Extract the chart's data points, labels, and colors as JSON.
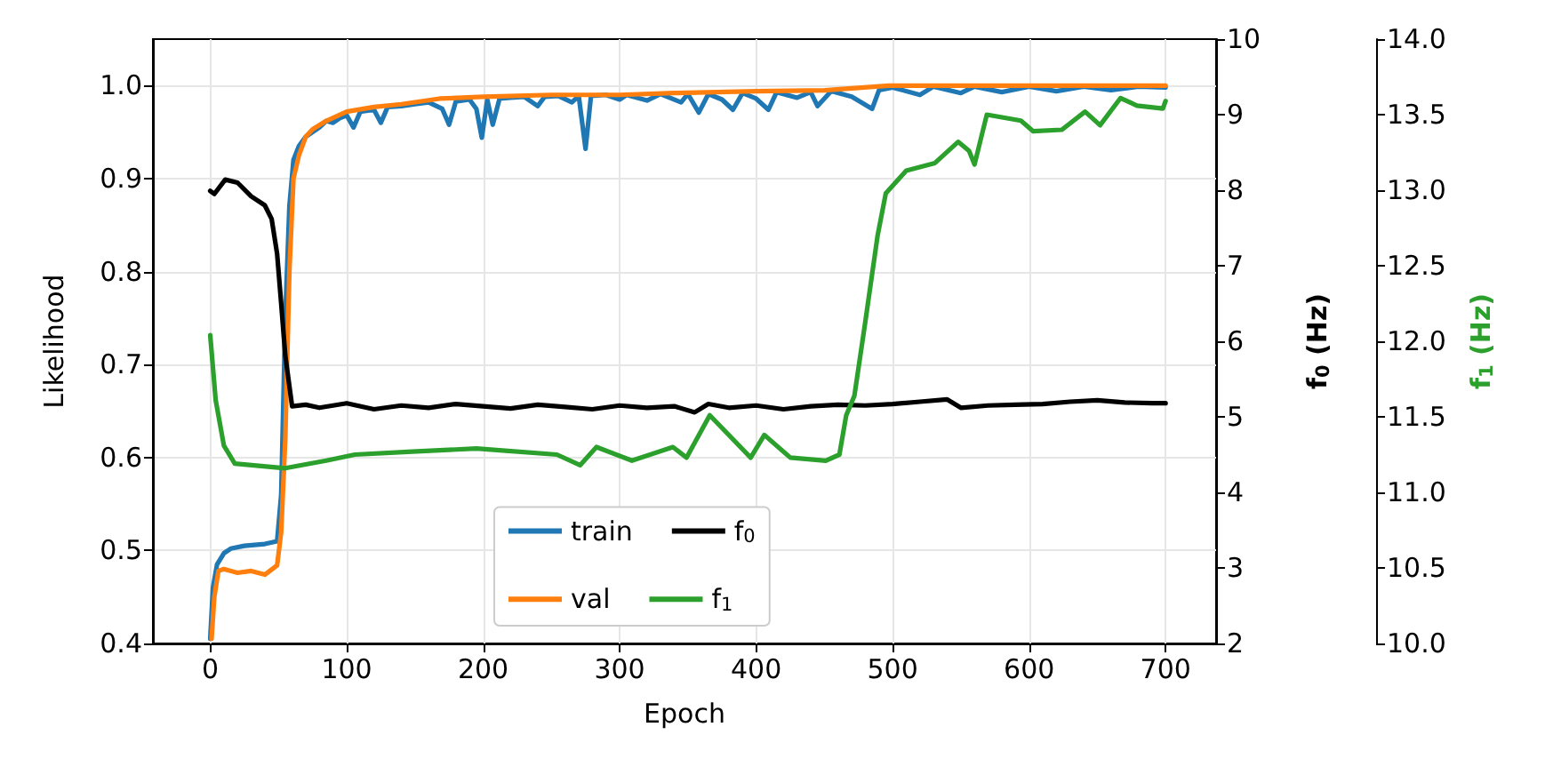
{
  "chart_data": {
    "type": "line",
    "xlabel": "Epoch",
    "ylabel": "Likelihood",
    "y2label": "f$_{0}$ (Hz)",
    "y3label": "f$_{1}$ (Hz)",
    "xlim": [
      -42,
      737
    ],
    "xticks": [
      0,
      100,
      200,
      300,
      400,
      500,
      600,
      700
    ],
    "ylim": [
      0.4,
      1.05
    ],
    "yticks": [
      {
        "value": 0.4,
        "label": "0.4"
      },
      {
        "value": 0.5,
        "label": "0.5"
      },
      {
        "value": 0.6,
        "label": "0.6"
      },
      {
        "value": 0.7,
        "label": "0.7"
      },
      {
        "value": 0.8,
        "label": "0.8"
      },
      {
        "value": 0.9,
        "label": "0.9"
      },
      {
        "value": 1.0,
        "label": "1.0"
      }
    ],
    "y2lim": [
      2,
      10
    ],
    "y2ticks": [
      2,
      3,
      4,
      5,
      6,
      7,
      8,
      9,
      10
    ],
    "y3lim": [
      10,
      14
    ],
    "y3ticks": [
      {
        "value": 10,
        "label": "10.0"
      },
      {
        "value": 10.5,
        "label": "10.5"
      },
      {
        "value": 11,
        "label": "11.0"
      },
      {
        "value": 11.5,
        "label": "11.5"
      },
      {
        "value": 12,
        "label": "12.0"
      },
      {
        "value": 12.5,
        "label": "12.5"
      },
      {
        "value": 13,
        "label": "13.0"
      },
      {
        "value": 13.5,
        "label": "13.5"
      },
      {
        "value": 14,
        "label": "14.0"
      }
    ],
    "grid": true,
    "legend": "bottom",
    "marker": "none",
    "line_style": "solid",
    "series": [
      {
        "name": "train",
        "color": "#1f77b4",
        "x": [
          0,
          2,
          5,
          10,
          15,
          25,
          40,
          49,
          52,
          55,
          58,
          61,
          65,
          70,
          75,
          80,
          85,
          90,
          95,
          100,
          105,
          110,
          120,
          125,
          130,
          140,
          150,
          160,
          170,
          175,
          180,
          190,
          195,
          199,
          203,
          207,
          212,
          220,
          230,
          240,
          245,
          255,
          265,
          270,
          275,
          279,
          290,
          300,
          305,
          320,
          330,
          345,
          350,
          358,
          365,
          375,
          383,
          390,
          400,
          409,
          415,
          430,
          440,
          445,
          455,
          470,
          485,
          490,
          500,
          520,
          530,
          550,
          560,
          580,
          600,
          620,
          640,
          660,
          680,
          700
        ],
        "values": [
          0.405,
          0.46,
          0.485,
          0.497,
          0.502,
          0.505,
          0.507,
          0.51,
          0.56,
          0.75,
          0.87,
          0.92,
          0.935,
          0.945,
          0.95,
          0.955,
          0.962,
          0.96,
          0.965,
          0.968,
          0.955,
          0.972,
          0.974,
          0.96,
          0.977,
          0.978,
          0.98,
          0.982,
          0.975,
          0.958,
          0.983,
          0.985,
          0.975,
          0.944,
          0.985,
          0.958,
          0.986,
          0.987,
          0.988,
          0.978,
          0.988,
          0.989,
          0.982,
          0.989,
          0.932,
          0.989,
          0.99,
          0.985,
          0.99,
          0.984,
          0.991,
          0.982,
          0.991,
          0.971,
          0.991,
          0.985,
          0.974,
          0.992,
          0.986,
          0.974,
          0.993,
          0.987,
          0.993,
          0.978,
          0.994,
          0.988,
          0.975,
          0.995,
          0.998,
          0.99,
          0.999,
          0.992,
          0.999,
          0.993,
          0.999,
          0.994,
          0.999,
          0.995,
          0.999,
          0.998
        ]
      },
      {
        "name": "val",
        "color": "#ff7f0e",
        "x": [
          1,
          3,
          6,
          10,
          20,
          30,
          40,
          49,
          52,
          55,
          58,
          61,
          65,
          70,
          75,
          85,
          100,
          120,
          140,
          168,
          200,
          250,
          300,
          340,
          400,
          450,
          497,
          550,
          600,
          650,
          700
        ],
        "values": [
          0.405,
          0.45,
          0.478,
          0.48,
          0.476,
          0.478,
          0.474,
          0.484,
          0.52,
          0.62,
          0.8,
          0.9,
          0.925,
          0.945,
          0.953,
          0.962,
          0.972,
          0.977,
          0.98,
          0.986,
          0.988,
          0.99,
          0.99,
          0.992,
          0.994,
          0.995,
          1.0,
          1.0,
          1.0,
          1.0,
          1.0
        ]
      },
      {
        "name": "f$_{0}$",
        "color": "#000000",
        "axis": "y2",
        "x": [
          0,
          3,
          11,
          20,
          30,
          40,
          45,
          49,
          52,
          55,
          60,
          70,
          80,
          100,
          120,
          140,
          160,
          180,
          200,
          220,
          240,
          260,
          280,
          300,
          320,
          340,
          355,
          365,
          380,
          400,
          420,
          440,
          460,
          480,
          500,
          520,
          540,
          550,
          570,
          590,
          610,
          630,
          650,
          670,
          690,
          700
        ],
        "values": [
          7.99,
          7.95,
          8.14,
          8.1,
          7.92,
          7.8,
          7.62,
          7.16,
          6.5,
          5.81,
          5.14,
          5.16,
          5.12,
          5.18,
          5.1,
          5.15,
          5.12,
          5.17,
          5.14,
          5.11,
          5.16,
          5.13,
          5.1,
          5.15,
          5.12,
          5.14,
          5.06,
          5.17,
          5.12,
          5.15,
          5.1,
          5.14,
          5.16,
          5.15,
          5.17,
          5.2,
          5.23,
          5.12,
          5.15,
          5.16,
          5.17,
          5.2,
          5.22,
          5.19,
          5.18,
          5.18
        ]
      },
      {
        "name": "f$_{1}$",
        "color": "#2ca02c",
        "axis": "y3",
        "x": [
          0,
          4,
          10,
          18,
          55,
          85,
          106,
          148,
          195,
          254,
          271,
          283,
          309,
          339,
          349,
          366,
          396,
          406,
          425,
          451,
          461,
          466,
          472,
          480,
          489,
          495,
          510,
          531,
          548,
          556,
          560,
          569,
          594,
          603,
          624,
          641,
          652,
          667,
          679,
          698,
          700
        ],
        "values": [
          12.04,
          11.61,
          11.31,
          11.19,
          11.16,
          11.21,
          11.25,
          11.27,
          11.29,
          11.25,
          11.18,
          11.3,
          11.21,
          11.3,
          11.23,
          11.51,
          11.23,
          11.38,
          11.23,
          11.21,
          11.25,
          11.51,
          11.64,
          12.13,
          12.7,
          12.98,
          13.13,
          13.18,
          13.32,
          13.26,
          13.17,
          13.5,
          13.46,
          13.39,
          13.4,
          13.52,
          13.43,
          13.61,
          13.56,
          13.54,
          13.59
        ]
      }
    ]
  }
}
